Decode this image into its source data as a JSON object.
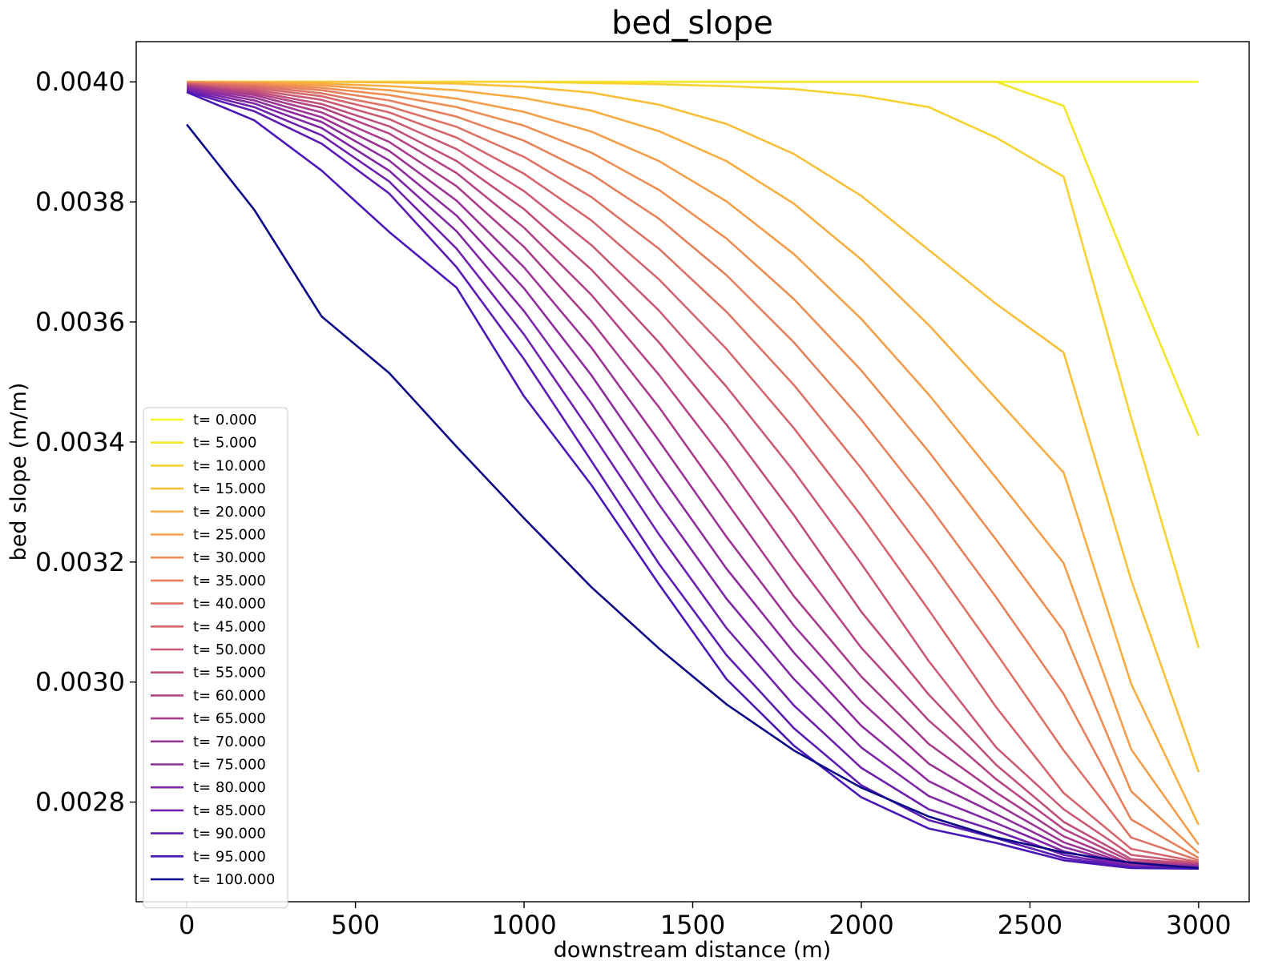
{
  "chart_data": {
    "type": "line",
    "title": "bed_slope",
    "xlabel": "downstream distance (m)",
    "ylabel": "bed slope (m/m)",
    "xlim": [
      -150,
      3150
    ],
    "ylim": [
      0.002634,
      0.004067
    ],
    "xticks": [
      0,
      500,
      1000,
      1500,
      2000,
      2500,
      3000
    ],
    "xtick_labels": [
      "0",
      "500",
      "1000",
      "1500",
      "2000",
      "2500",
      "3000"
    ],
    "yticks": [
      0.0028,
      0.003,
      0.0032,
      0.0034,
      0.0036,
      0.0038,
      0.004
    ],
    "ytick_labels": [
      "0.0028",
      "0.0030",
      "0.0032",
      "0.0034",
      "0.0036",
      "0.0038",
      "0.0040"
    ],
    "legend_position": "lower-left",
    "x": [
      0,
      200,
      400,
      600,
      800,
      1000,
      1200,
      1400,
      1600,
      1800,
      2000,
      2200,
      2400,
      2600,
      2800,
      3000
    ],
    "series": [
      {
        "name": "t= 0.000",
        "color": "#f0f921",
        "values": [
          0.004,
          0.004,
          0.004,
          0.004,
          0.004,
          0.004,
          0.004,
          0.004,
          0.004,
          0.004,
          0.004,
          0.004,
          0.004,
          0.004,
          0.004,
          0.004
        ]
      },
      {
        "name": "t= 5.000",
        "color": "#f3e529",
        "values": [
          0.004,
          0.004,
          0.004,
          0.004,
          0.004,
          0.004,
          0.004,
          0.004,
          0.004,
          0.004,
          0.004,
          0.004,
          0.004,
          0.00396,
          0.00368,
          0.00341
        ]
      },
      {
        "name": "t= 10.000",
        "color": "#f7d232",
        "values": [
          0.004,
          0.004,
          0.004,
          0.004,
          0.004,
          0.004,
          0.003998,
          0.003996,
          0.003993,
          0.003988,
          0.003977,
          0.003958,
          0.003907,
          0.003842,
          0.00344,
          0.003057
        ]
      },
      {
        "name": "t= 15.000",
        "color": "#fac03b",
        "values": [
          0.004,
          0.004,
          0.004,
          0.003999,
          0.003997,
          0.003992,
          0.003982,
          0.003962,
          0.00393,
          0.00388,
          0.00381,
          0.00372,
          0.00363,
          0.003549,
          0.00317,
          0.00285
        ]
      },
      {
        "name": "t= 20.000",
        "color": "#f9ae43",
        "values": [
          0.004,
          0.003999,
          0.003997,
          0.003993,
          0.003986,
          0.003973,
          0.003952,
          0.003918,
          0.003868,
          0.003797,
          0.003704,
          0.003595,
          0.003472,
          0.003349,
          0.002997,
          0.002762
        ]
      },
      {
        "name": "t= 25.000",
        "color": "#f59e4b",
        "values": [
          0.004,
          0.003998,
          0.003994,
          0.003986,
          0.003972,
          0.00395,
          0.003917,
          0.003868,
          0.003801,
          0.003713,
          0.003605,
          0.003479,
          0.00334,
          0.003198,
          0.002888,
          0.002729
        ]
      },
      {
        "name": "t= 30.000",
        "color": "#ef8e54",
        "values": [
          0.003999,
          0.003997,
          0.00399,
          0.003978,
          0.003958,
          0.003927,
          0.003882,
          0.00382,
          0.003739,
          0.003638,
          0.003519,
          0.003384,
          0.003237,
          0.003085,
          0.002818,
          0.002715
        ]
      },
      {
        "name": "t= 35.000",
        "color": "#e7805c",
        "values": [
          0.003998,
          0.003995,
          0.003986,
          0.003969,
          0.003942,
          0.003902,
          0.003846,
          0.003772,
          0.003678,
          0.003566,
          0.003437,
          0.003294,
          0.003141,
          0.00298,
          0.002771,
          0.002707
        ]
      },
      {
        "name": "t= 40.000",
        "color": "#de7265",
        "values": [
          0.003998,
          0.003993,
          0.003981,
          0.003959,
          0.003925,
          0.003875,
          0.003808,
          0.003722,
          0.003617,
          0.003495,
          0.003356,
          0.003206,
          0.003048,
          0.002886,
          0.002741,
          0.002703
        ]
      },
      {
        "name": "t= 45.000",
        "color": "#d5666d",
        "values": [
          0.003997,
          0.00399,
          0.003976,
          0.003949,
          0.003907,
          0.003847,
          0.003769,
          0.003671,
          0.003555,
          0.003423,
          0.003277,
          0.00312,
          0.002958,
          0.002815,
          0.002722,
          0.0027
        ]
      },
      {
        "name": "t= 50.000",
        "color": "#cb5a74",
        "values": [
          0.003996,
          0.003987,
          0.00397,
          0.003938,
          0.003888,
          0.003818,
          0.003728,
          0.003619,
          0.003492,
          0.003351,
          0.003197,
          0.003035,
          0.002891,
          0.002788,
          0.002712,
          0.002698
        ]
      },
      {
        "name": "t= 55.000",
        "color": "#c04f7c",
        "values": [
          0.003995,
          0.003984,
          0.003963,
          0.003926,
          0.003868,
          0.003788,
          0.003687,
          0.003566,
          0.003429,
          0.003278,
          0.003117,
          0.002979,
          0.002862,
          0.002767,
          0.002705,
          0.002697
        ]
      },
      {
        "name": "t= 60.000",
        "color": "#b54584",
        "values": [
          0.003994,
          0.003981,
          0.003957,
          0.003914,
          0.003848,
          0.003757,
          0.003645,
          0.003512,
          0.003365,
          0.003206,
          0.003057,
          0.002936,
          0.002838,
          0.002755,
          0.002701,
          0.002696
        ]
      },
      {
        "name": "t= 65.000",
        "color": "#a93c8d",
        "values": [
          0.003993,
          0.003978,
          0.003949,
          0.0039,
          0.003826,
          0.003725,
          0.003601,
          0.003458,
          0.0033,
          0.003143,
          0.003009,
          0.002897,
          0.002816,
          0.002743,
          0.002697,
          0.002695
        ]
      },
      {
        "name": "t= 70.000",
        "color": "#9c3495",
        "values": [
          0.003991,
          0.003974,
          0.003941,
          0.003885,
          0.003802,
          0.003691,
          0.003557,
          0.003402,
          0.003242,
          0.003094,
          0.002967,
          0.002864,
          0.002797,
          0.002733,
          0.002695,
          0.002694
        ]
      },
      {
        "name": "t= 75.000",
        "color": "#8e2d9e",
        "values": [
          0.00399,
          0.003969,
          0.003933,
          0.003869,
          0.003777,
          0.003656,
          0.003511,
          0.003348,
          0.003189,
          0.003049,
          0.002927,
          0.002835,
          0.00278,
          0.002725,
          0.002694,
          0.002693
        ]
      },
      {
        "name": "t= 80.000",
        "color": "#7f27a6",
        "values": [
          0.003988,
          0.003964,
          0.003923,
          0.003852,
          0.003751,
          0.003618,
          0.003464,
          0.003296,
          0.003139,
          0.003005,
          0.002891,
          0.00281,
          0.002765,
          0.002718,
          0.002693,
          0.002692
        ]
      },
      {
        "name": "t= 85.000",
        "color": "#6f21ad",
        "values": [
          0.003986,
          0.003958,
          0.003911,
          0.003834,
          0.003722,
          0.003579,
          0.003415,
          0.003246,
          0.00309,
          0.002961,
          0.002857,
          0.002788,
          0.002752,
          0.002712,
          0.002692,
          0.002691
        ]
      },
      {
        "name": "t= 90.000",
        "color": "#5d1cb3",
        "values": [
          0.003984,
          0.003951,
          0.003897,
          0.003814,
          0.003691,
          0.003538,
          0.003368,
          0.003197,
          0.003045,
          0.002923,
          0.002828,
          0.00277,
          0.00274,
          0.002707,
          0.002691,
          0.00269
        ]
      },
      {
        "name": "t= 95.000",
        "color": "#4a18b8",
        "values": [
          0.003983,
          0.003936,
          0.003852,
          0.00375,
          0.003657,
          0.003476,
          0.003328,
          0.003163,
          0.003005,
          0.002894,
          0.002808,
          0.002756,
          0.002732,
          0.002703,
          0.00269,
          0.002689
        ]
      },
      {
        "name": "t= 100.000",
        "color": "#0d0887",
        "values": [
          0.003929,
          0.003787,
          0.003609,
          0.003515,
          0.003392,
          0.003273,
          0.003158,
          0.003056,
          0.002963,
          0.002886,
          0.002824,
          0.002776,
          0.002741,
          0.002716,
          0.002699,
          0.00269
        ]
      }
    ]
  }
}
